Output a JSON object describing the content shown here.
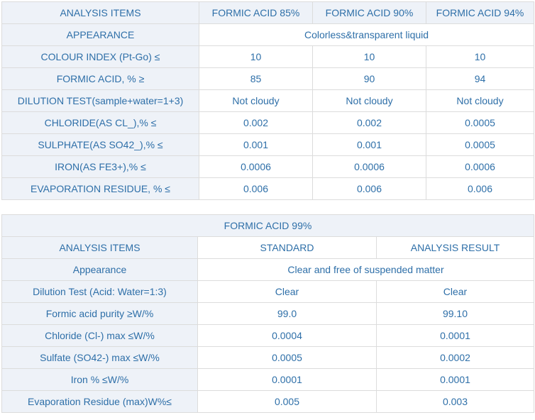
{
  "table1": {
    "header": [
      "ANALYSIS ITEMS",
      "FORMIC ACID 85%",
      "FORMIC ACID 90%",
      "FORMIC ACID 94%"
    ],
    "appearance": {
      "label": "APPEARANCE",
      "value": "Colorless&transparent liquid"
    },
    "rows": [
      [
        "COLOUR INDEX (Pt-Go) ≤",
        "10",
        "10",
        "10"
      ],
      [
        "FORMIC ACID, % ≥",
        "85",
        "90",
        "94"
      ],
      [
        "DILUTION TEST(sample+water=1+3)",
        "Not cloudy",
        "Not cloudy",
        "Not cloudy"
      ],
      [
        "CHLORIDE(AS CL_),% ≤",
        "0.002",
        "0.002",
        "0.0005"
      ],
      [
        "SULPHATE(AS SO42_),% ≤",
        "0.001",
        "0.001",
        "0.0005"
      ],
      [
        "IRON(AS FE3+),% ≤",
        "0.0006",
        "0.0006",
        "0.0006"
      ],
      [
        "EVAPORATION RESIDUE, % ≤",
        "0.006",
        "0.006",
        "0.006"
      ]
    ]
  },
  "table2": {
    "title": "FORMIC ACID 99%",
    "header": [
      "ANALYSIS ITEMS",
      "STANDARD",
      "ANALYSIS RESULT"
    ],
    "appearance": {
      "label": "Appearance",
      "value": "Clear and free of suspended matter"
    },
    "rows": [
      [
        "Dilution Test (Acid: Water=1:3)",
        "Clear",
        "Clear"
      ],
      [
        "Formic acid purity ≥W/%",
        "99.0",
        "99.10"
      ],
      [
        "Chloride (Cl-) max ≤W/%",
        "0.0004",
        "0.0001"
      ],
      [
        "Sulfate (SO42-) max ≤W/%",
        "0.0005",
        "0.0002"
      ],
      [
        "Iron % ≤W/%",
        "0.0001",
        "0.0001"
      ],
      [
        "Evaporation Residue (max)W%≤",
        "0.005",
        "0.003"
      ]
    ]
  }
}
